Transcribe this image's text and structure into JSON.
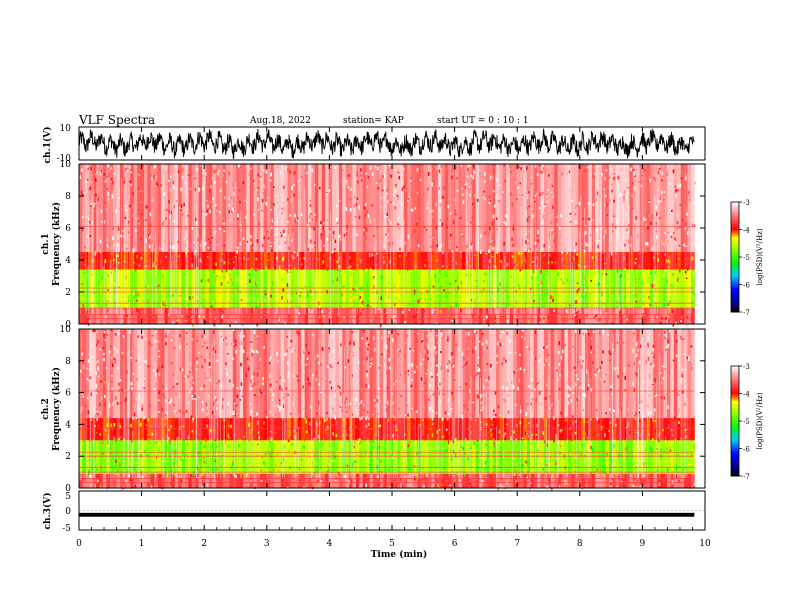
{
  "header": {
    "title": "VLF Spectra",
    "date": "Aug.18, 2022",
    "station": "station= KAP",
    "start": "start  UT =   0  : 10 : 1"
  },
  "chart_data": [
    {
      "type": "line",
      "panel": "waveform-ch1",
      "ylabel": "ch.1(V)",
      "ylim": [
        -10,
        10
      ],
      "y_ticks": [
        "10",
        "-10"
      ],
      "xlim": [
        0,
        10
      ],
      "x_data_range": [
        0,
        9.83
      ],
      "series": [
        {
          "values": "dense noise waveform, amplitude approx -7..+7 V, centered near 0"
        }
      ]
    },
    {
      "type": "heatmap",
      "panel": "spectrogram-ch1",
      "ylabel": "ch.1\nFrequency (kHz)",
      "ylim": [
        0,
        10
      ],
      "y_ticks": [
        "0",
        "2",
        "4",
        "6",
        "8",
        "10"
      ],
      "xlim": [
        0,
        10
      ],
      "x_data_range": [
        0,
        9.83
      ],
      "bands": [
        {
          "f_low": 0.0,
          "f_high": 1.0,
          "level": -3.6
        },
        {
          "f_low": 1.0,
          "f_high": 3.4,
          "level": -4.6
        },
        {
          "f_low": 3.4,
          "f_high": 4.5,
          "level": -3.9
        },
        {
          "f_low": 4.5,
          "f_high": 10.0,
          "level": -3.4
        }
      ],
      "colorbar": {
        "label": "log(PSD)(V²/Hz)",
        "min": -7,
        "max": -3,
        "ticks": [
          "-3",
          "-4",
          "-5",
          "-6",
          "-7"
        ]
      }
    },
    {
      "type": "heatmap",
      "panel": "spectrogram-ch2",
      "ylabel": "ch.2\nFrequency (kHz)",
      "ylim": [
        0,
        10
      ],
      "y_ticks": [
        "0",
        "2",
        "4",
        "6",
        "8",
        "10"
      ],
      "xlim": [
        0,
        10
      ],
      "x_data_range": [
        0,
        9.83
      ],
      "bands": [
        {
          "f_low": 0.0,
          "f_high": 0.9,
          "level": -3.6
        },
        {
          "f_low": 0.9,
          "f_high": 3.0,
          "level": -4.7
        },
        {
          "f_low": 3.0,
          "f_high": 4.4,
          "level": -3.9
        },
        {
          "f_low": 4.4,
          "f_high": 10.0,
          "level": -3.4
        }
      ],
      "colorbar": {
        "label": "log(PSD)(V²/Hz)",
        "min": -7,
        "max": -3,
        "ticks": [
          "-3",
          "-4",
          "-5",
          "-6",
          "-7"
        ]
      }
    },
    {
      "type": "line",
      "panel": "waveform-ch3",
      "ylabel": "ch.3(V)",
      "ylim": [
        -5,
        5
      ],
      "y_ticks": [
        "5",
        "0",
        "-5"
      ],
      "xlim": [
        0,
        10
      ],
      "x_data_range": [
        0,
        9.83
      ],
      "series": [
        {
          "values": "constant band near -1 V, thickness approx 1 V"
        }
      ]
    }
  ],
  "x_axis": {
    "label": "Time  (min)",
    "ticks": [
      "0",
      "1",
      "2",
      "3",
      "4",
      "5",
      "6",
      "7",
      "8",
      "9",
      "10"
    ]
  },
  "colors": {
    "waveform": "#000000",
    "bg_high": "#ffffff",
    "red": "#ff0000",
    "yellow": "#ffff00",
    "green": "#00ff00"
  }
}
